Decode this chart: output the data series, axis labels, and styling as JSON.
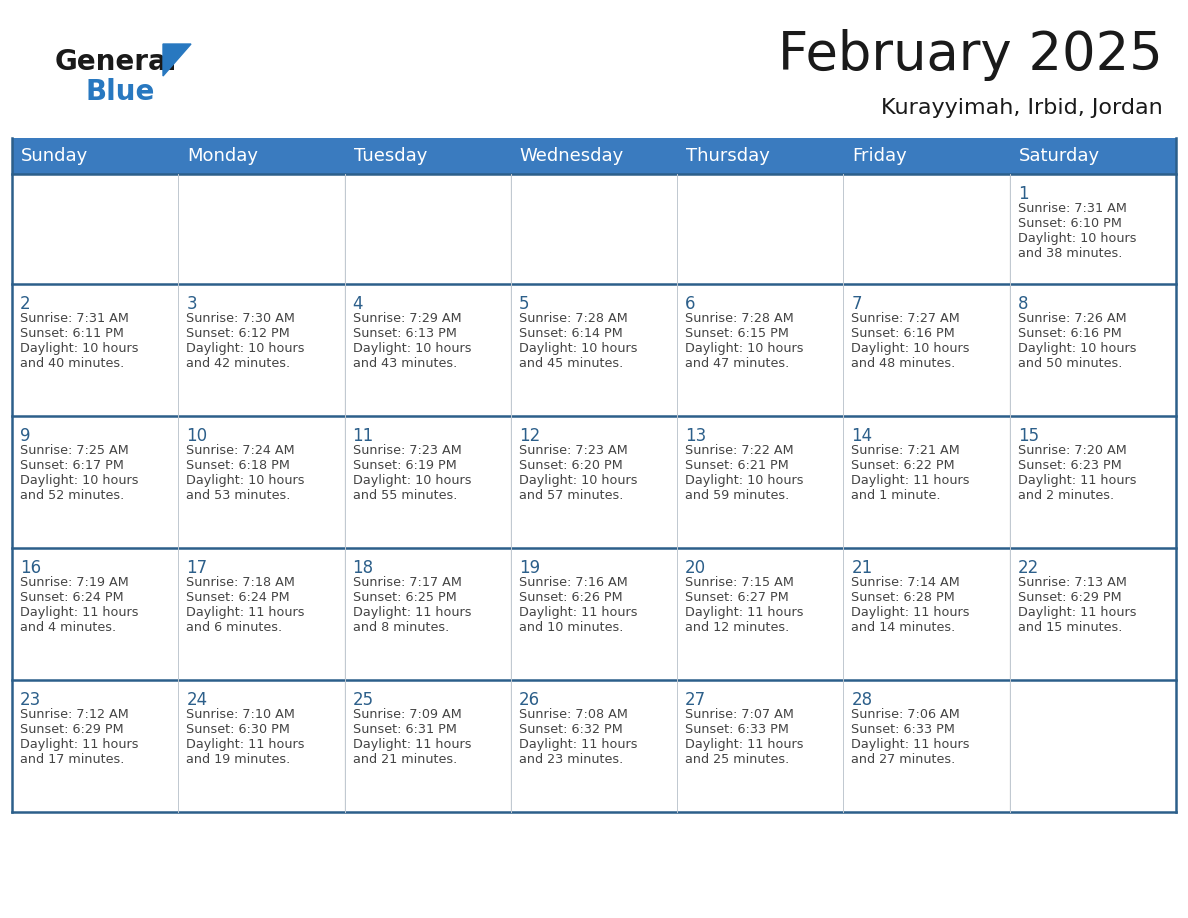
{
  "title": "February 2025",
  "subtitle": "Kurayyimah, Irbid, Jordan",
  "days_of_week": [
    "Sunday",
    "Monday",
    "Tuesday",
    "Wednesday",
    "Thursday",
    "Friday",
    "Saturday"
  ],
  "header_bg_color": "#3a7bbf",
  "header_text_color": "#ffffff",
  "cell_bg_color": "#ffffff",
  "border_color": "#2c5f8a",
  "day_number_color": "#2c5f8a",
  "detail_text_color": "#444444",
  "calendar_data": {
    "1": {
      "sunrise": "7:31 AM",
      "sunset": "6:10 PM",
      "daylight": "10 hours and 38 minutes."
    },
    "2": {
      "sunrise": "7:31 AM",
      "sunset": "6:11 PM",
      "daylight": "10 hours and 40 minutes."
    },
    "3": {
      "sunrise": "7:30 AM",
      "sunset": "6:12 PM",
      "daylight": "10 hours and 42 minutes."
    },
    "4": {
      "sunrise": "7:29 AM",
      "sunset": "6:13 PM",
      "daylight": "10 hours and 43 minutes."
    },
    "5": {
      "sunrise": "7:28 AM",
      "sunset": "6:14 PM",
      "daylight": "10 hours and 45 minutes."
    },
    "6": {
      "sunrise": "7:28 AM",
      "sunset": "6:15 PM",
      "daylight": "10 hours and 47 minutes."
    },
    "7": {
      "sunrise": "7:27 AM",
      "sunset": "6:16 PM",
      "daylight": "10 hours and 48 minutes."
    },
    "8": {
      "sunrise": "7:26 AM",
      "sunset": "6:16 PM",
      "daylight": "10 hours and 50 minutes."
    },
    "9": {
      "sunrise": "7:25 AM",
      "sunset": "6:17 PM",
      "daylight": "10 hours and 52 minutes."
    },
    "10": {
      "sunrise": "7:24 AM",
      "sunset": "6:18 PM",
      "daylight": "10 hours and 53 minutes."
    },
    "11": {
      "sunrise": "7:23 AM",
      "sunset": "6:19 PM",
      "daylight": "10 hours and 55 minutes."
    },
    "12": {
      "sunrise": "7:23 AM",
      "sunset": "6:20 PM",
      "daylight": "10 hours and 57 minutes."
    },
    "13": {
      "sunrise": "7:22 AM",
      "sunset": "6:21 PM",
      "daylight": "10 hours and 59 minutes."
    },
    "14": {
      "sunrise": "7:21 AM",
      "sunset": "6:22 PM",
      "daylight": "11 hours and 1 minute."
    },
    "15": {
      "sunrise": "7:20 AM",
      "sunset": "6:23 PM",
      "daylight": "11 hours and 2 minutes."
    },
    "16": {
      "sunrise": "7:19 AM",
      "sunset": "6:24 PM",
      "daylight": "11 hours and 4 minutes."
    },
    "17": {
      "sunrise": "7:18 AM",
      "sunset": "6:24 PM",
      "daylight": "11 hours and 6 minutes."
    },
    "18": {
      "sunrise": "7:17 AM",
      "sunset": "6:25 PM",
      "daylight": "11 hours and 8 minutes."
    },
    "19": {
      "sunrise": "7:16 AM",
      "sunset": "6:26 PM",
      "daylight": "11 hours and 10 minutes."
    },
    "20": {
      "sunrise": "7:15 AM",
      "sunset": "6:27 PM",
      "daylight": "11 hours and 12 minutes."
    },
    "21": {
      "sunrise": "7:14 AM",
      "sunset": "6:28 PM",
      "daylight": "11 hours and 14 minutes."
    },
    "22": {
      "sunrise": "7:13 AM",
      "sunset": "6:29 PM",
      "daylight": "11 hours and 15 minutes."
    },
    "23": {
      "sunrise": "7:12 AM",
      "sunset": "6:29 PM",
      "daylight": "11 hours and 17 minutes."
    },
    "24": {
      "sunrise": "7:10 AM",
      "sunset": "6:30 PM",
      "daylight": "11 hours and 19 minutes."
    },
    "25": {
      "sunrise": "7:09 AM",
      "sunset": "6:31 PM",
      "daylight": "11 hours and 21 minutes."
    },
    "26": {
      "sunrise": "7:08 AM",
      "sunset": "6:32 PM",
      "daylight": "11 hours and 23 minutes."
    },
    "27": {
      "sunrise": "7:07 AM",
      "sunset": "6:33 PM",
      "daylight": "11 hours and 25 minutes."
    },
    "28": {
      "sunrise": "7:06 AM",
      "sunset": "6:33 PM",
      "daylight": "11 hours and 27 minutes."
    }
  },
  "logo_general_color": "#1a1a1a",
  "logo_blue_color": "#2878c0",
  "logo_triangle_color": "#2878c0"
}
